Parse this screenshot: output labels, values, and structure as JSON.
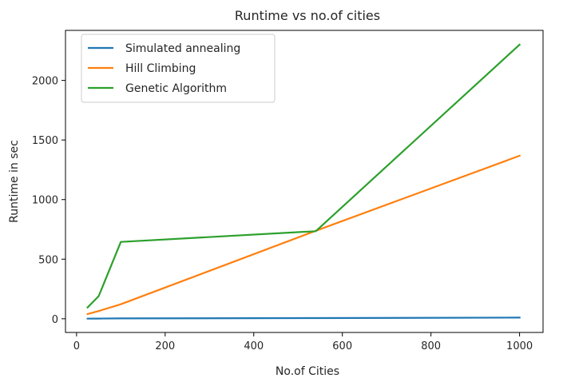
{
  "chart_data": {
    "type": "line",
    "title": "Runtime vs no.of cities",
    "xlabel": "No.of Cities",
    "ylabel": "Runtime in sec",
    "xlim": [
      -25,
      1053
    ],
    "ylim": [
      -115,
      2420
    ],
    "xticks": [
      0,
      200,
      400,
      600,
      800,
      1000
    ],
    "yticks": [
      0,
      500,
      1000,
      1500,
      2000
    ],
    "grid": false,
    "legend_position": "upper-left",
    "series": [
      {
        "name": "Simulated annealing",
        "color": "#1f77b4",
        "x": [
          25,
          50,
          100,
          540,
          1000
        ],
        "y": [
          1,
          2,
          3,
          6,
          10
        ]
      },
      {
        "name": "Hill Climbing",
        "color": "#ff7f0e",
        "x": [
          25,
          50,
          100,
          540,
          1000
        ],
        "y": [
          40,
          65,
          122,
          738,
          1368
        ]
      },
      {
        "name": "Genetic Algorithm",
        "color": "#2ca02c",
        "x": [
          25,
          50,
          100,
          540,
          1000
        ],
        "y": [
          95,
          190,
          645,
          735,
          2300
        ]
      }
    ]
  }
}
